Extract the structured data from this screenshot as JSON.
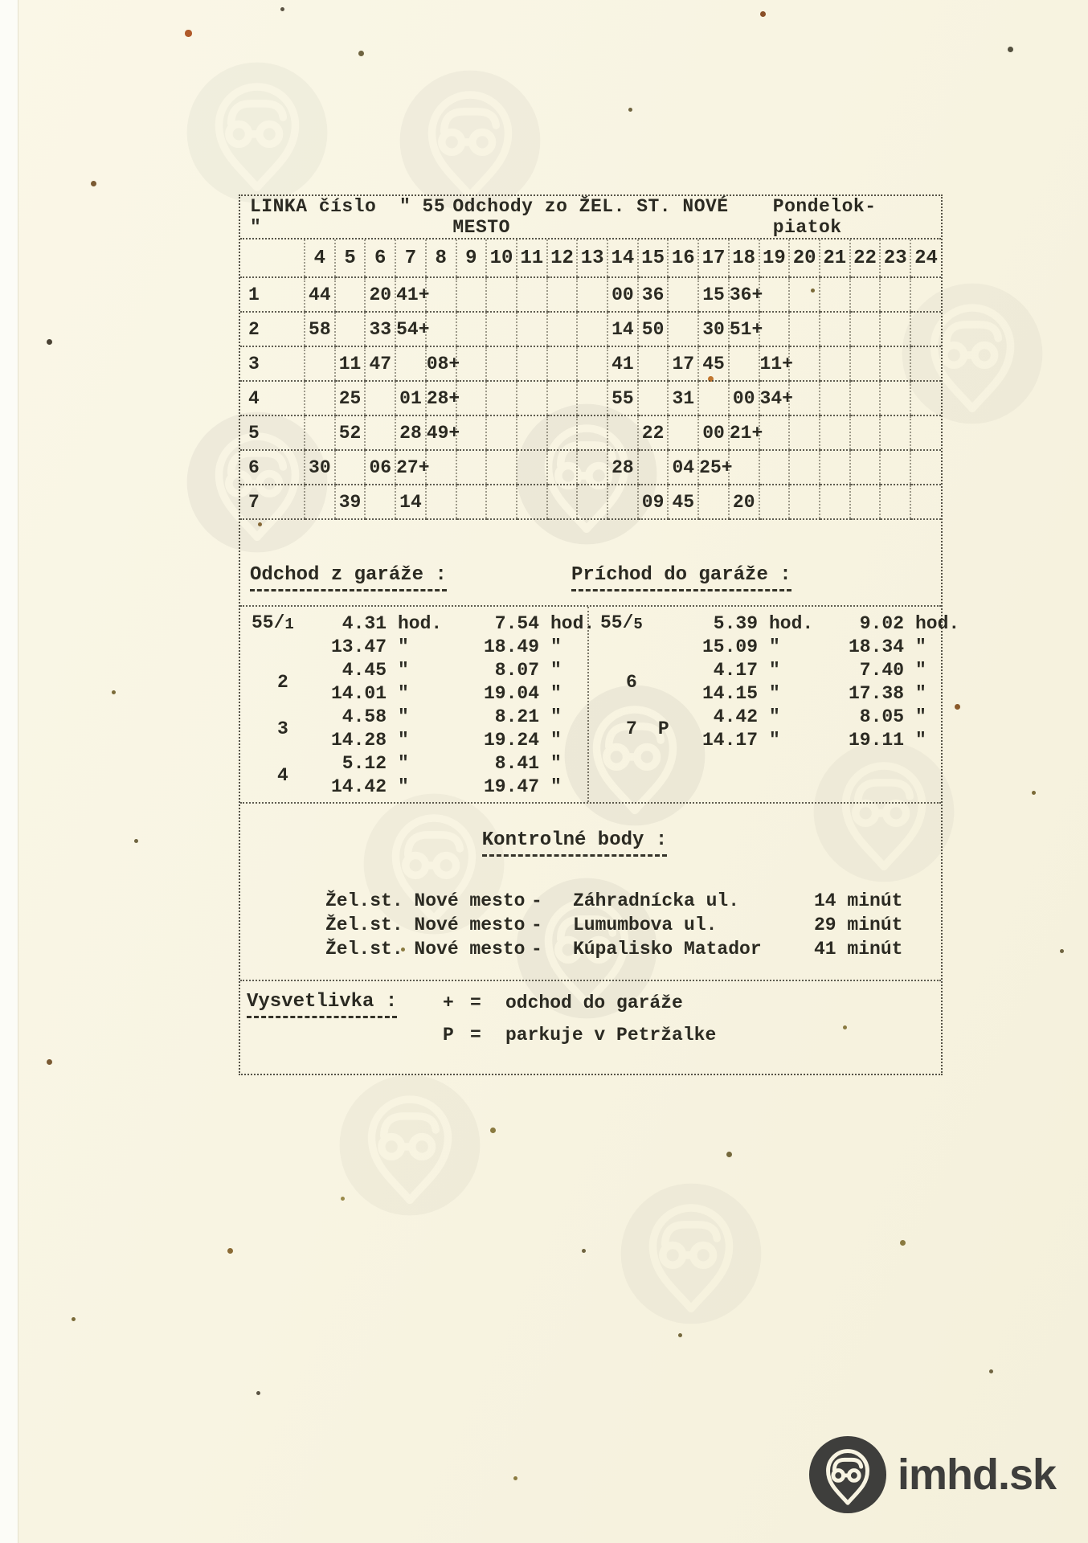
{
  "header": {
    "line_label": "LINKA číslo",
    "line_number": "\" 55 \"",
    "departures": "Odchody zo ŽEL. ST. NOVÉ MESTO",
    "days": "Pondelok-piatok"
  },
  "timetable": {
    "hours": [
      "4",
      "5",
      "6",
      "7",
      "8",
      "9",
      "10",
      "11",
      "12",
      "13",
      "14",
      "15",
      "16",
      "17",
      "18",
      "19",
      "20",
      "21",
      "22",
      "23",
      "24"
    ],
    "rows": [
      {
        "label": "1",
        "times": {
          "4": "44",
          "6": "20",
          "7": "41+",
          "14": "00",
          "15": "36",
          "17": "15",
          "18": "36+"
        }
      },
      {
        "label": "2",
        "times": {
          "4": "58",
          "6": "33",
          "7": "54+",
          "14": "14",
          "15": "50",
          "17": "30",
          "18": "51+"
        }
      },
      {
        "label": "3",
        "times": {
          "5": "11",
          "6": "47",
          "8": "08+",
          "14": "41",
          "16": "17",
          "17": "45",
          "19": "11+"
        }
      },
      {
        "label": "4",
        "times": {
          "5": "25",
          "7": "01",
          "8": "28+",
          "14": "55",
          "16": "31",
          "18": "00",
          "19": "34+"
        }
      },
      {
        "label": "5",
        "times": {
          "5": "52",
          "7": "28",
          "8": "49+",
          "15": "22",
          "17": "00",
          "18": "21+"
        }
      },
      {
        "label": "6",
        "times": {
          "4": "30",
          "6": "06",
          "7": "27+",
          "14": "28",
          "16": "04",
          "17": "25+"
        }
      },
      {
        "label": "7",
        "times": {
          "5": "39",
          "7": "14",
          "15": "09",
          "16": "45",
          "18": "20"
        }
      }
    ]
  },
  "garage": {
    "left": {
      "title": "Odchod z garáže :",
      "groups": [
        {
          "prefix": "55/",
          "sub": "1",
          "lines": [
            [
              "4.31",
              "hod.",
              "7.54",
              "hod."
            ],
            [
              "13.47",
              "\"",
              "18.49",
              "\""
            ]
          ]
        },
        {
          "prefix": "2",
          "lines": [
            [
              "4.45",
              "\"",
              "8.07",
              "\""
            ],
            [
              "14.01",
              "\"",
              "19.04",
              "\""
            ]
          ]
        },
        {
          "prefix": "3",
          "lines": [
            [
              "4.58",
              "\"",
              "8.21",
              "\""
            ],
            [
              "14.28",
              "\"",
              "19.24",
              "\""
            ]
          ]
        },
        {
          "prefix": "4",
          "lines": [
            [
              "5.12",
              "\"",
              "8.41",
              "\""
            ],
            [
              "14.42",
              "\"",
              "19.47",
              "\""
            ]
          ]
        }
      ]
    },
    "right": {
      "title": "Príchod do garáže :",
      "groups": [
        {
          "prefix": "55/",
          "sub": "5",
          "lines": [
            [
              "5.39",
              "hod.",
              "9.02",
              "hod."
            ],
            [
              "15.09",
              "\"",
              "18.34",
              "\""
            ]
          ]
        },
        {
          "prefix": "6",
          "lines": [
            [
              "4.17",
              "\"",
              "7.40",
              "\""
            ],
            [
              "14.15",
              "\"",
              "17.38",
              "\""
            ]
          ]
        },
        {
          "prefix": "7",
          "suffix": "P",
          "lines": [
            [
              "4.42",
              "\"",
              "8.05",
              "\""
            ],
            [
              "14.17",
              "\"",
              "19.11",
              "\""
            ]
          ]
        }
      ]
    }
  },
  "control_points": {
    "title": "Kontrolné body :",
    "items": [
      {
        "from": "Žel.st. Nové mesto",
        "dash": "-",
        "to": "Záhradnícka ul.",
        "duration": "14 minút"
      },
      {
        "from": "Žel.st. Nové mesto",
        "dash": "-",
        "to": "Lumumbova ul.",
        "duration": "29 minút"
      },
      {
        "from": "Žel.st. Nové mesto",
        "dash": "-",
        "to": "Kúpalisko Matador",
        "duration": "41 minút"
      }
    ]
  },
  "legend": {
    "title": "Vysvetlivka :",
    "items": [
      {
        "symbol": "+",
        "eq": "=",
        "text": "odchod do garáže"
      },
      {
        "symbol": "P",
        "eq": "=",
        "text": "parkuje v Petržalke"
      }
    ]
  },
  "footer_logo": {
    "text": "imhd.sk"
  },
  "colors": {
    "paper": "#f8f4e2",
    "ink": "#2b2a22",
    "logo": "#3e3e3c"
  }
}
